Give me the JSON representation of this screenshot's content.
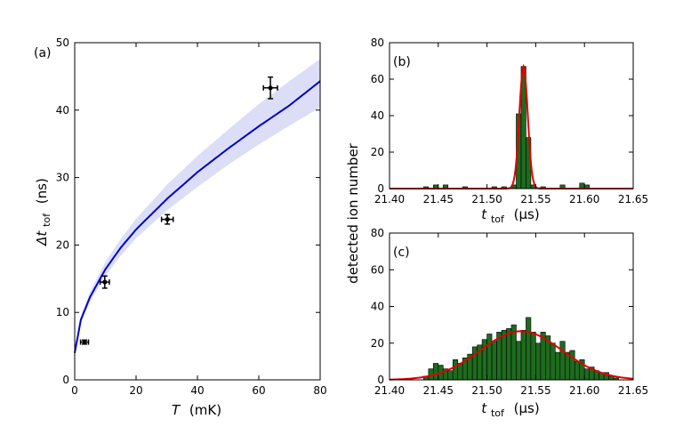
{
  "chart_data": [
    {
      "panel_label": "(a)",
      "type": "scatter",
      "xlabel": {
        "italic": "T",
        "unit": "(mK)"
      },
      "ylabel": {
        "italic": "Δt",
        "sub": "tof",
        "unit": "(ns)"
      },
      "xlim": [
        0,
        80
      ],
      "ylim": [
        0,
        50
      ],
      "x_ticks": [
        0,
        20,
        40,
        60,
        80
      ],
      "y_ticks": [
        0,
        10,
        20,
        30,
        40,
        50
      ],
      "x_tick_labels": [
        "0",
        "20",
        "40",
        "60",
        "80"
      ],
      "y_tick_labels": [
        "0",
        "10",
        "20",
        "30",
        "40",
        "50"
      ],
      "points": [
        {
          "x": 3.2,
          "y": 5.6,
          "xerr": 1.3,
          "yerr": 0.3
        },
        {
          "x": 9.8,
          "y": 14.5,
          "xerr": 1.5,
          "yerr": 0.9
        },
        {
          "x": 30.2,
          "y": 23.8,
          "xerr": 1.9,
          "yerr": 0.7
        },
        {
          "x": 63.8,
          "y": 43.3,
          "xerr": 2.3,
          "yerr": 1.6
        }
      ],
      "fit_curve": {
        "color": "#0000cc",
        "band_color": "#c5c7f0",
        "x": [
          0,
          2,
          5,
          10,
          15,
          20,
          30,
          40,
          50,
          60,
          70,
          80
        ],
        "y": [
          4.0,
          8.9,
          12.3,
          16.4,
          19.6,
          22.3,
          26.8,
          30.8,
          34.3,
          37.6,
          40.7,
          44.3
        ],
        "y_upper": [
          4.0,
          9.4,
          13.1,
          17.5,
          20.9,
          23.9,
          28.9,
          33.2,
          37.1,
          40.9,
          44.3,
          47.6
        ],
        "y_lower": [
          4.0,
          8.4,
          11.6,
          15.4,
          18.4,
          21.0,
          25.1,
          28.6,
          31.9,
          34.9,
          37.7,
          40.4
        ]
      }
    },
    {
      "panel_label": "(b)",
      "type": "bar",
      "xlabel": {
        "italic": "t",
        "sub": "tof",
        "unit": "(μs)"
      },
      "xlim": [
        21.4,
        21.65
      ],
      "ylim": [
        0,
        80
      ],
      "x_ticks": [
        21.4,
        21.45,
        21.5,
        21.55,
        21.6,
        21.65
      ],
      "x_tick_labels": [
        "21.40",
        "21.45",
        "21.50",
        "21.55",
        "21.60",
        "21.65"
      ],
      "y_ticks": [
        0,
        20,
        40,
        60,
        80
      ],
      "y_tick_labels": [
        "0",
        "20",
        "40",
        "60",
        "80"
      ],
      "bar_color": "#1e6b1e",
      "bin_width": 0.005,
      "bins": [
        {
          "x": 21.4375,
          "y": 1
        },
        {
          "x": 21.4475,
          "y": 2
        },
        {
          "x": 21.4575,
          "y": 2
        },
        {
          "x": 21.4775,
          "y": 1
        },
        {
          "x": 21.5075,
          "y": 1
        },
        {
          "x": 21.5175,
          "y": 1
        },
        {
          "x": 21.5275,
          "y": 2
        },
        {
          "x": 21.5325,
          "y": 41
        },
        {
          "x": 21.5375,
          "y": 67
        },
        {
          "x": 21.5425,
          "y": 28
        },
        {
          "x": 21.5475,
          "y": 2
        },
        {
          "x": 21.5575,
          "y": 1
        },
        {
          "x": 21.5775,
          "y": 2
        },
        {
          "x": 21.5975,
          "y": 3
        },
        {
          "x": 21.6025,
          "y": 2
        }
      ],
      "fit": {
        "type": "gaussian",
        "amplitude": 67,
        "center": 21.5375,
        "sigma": 0.0043,
        "color": "#e00000"
      }
    },
    {
      "panel_label": "(c)",
      "type": "bar",
      "xlabel": {
        "italic": "t",
        "sub": "tof",
        "unit": "(μs)"
      },
      "xlim": [
        21.4,
        21.65
      ],
      "ylim": [
        0,
        80
      ],
      "x_ticks": [
        21.4,
        21.45,
        21.5,
        21.55,
        21.6,
        21.65
      ],
      "x_tick_labels": [
        "21.40",
        "21.45",
        "21.50",
        "21.55",
        "21.60",
        "21.65"
      ],
      "y_ticks": [
        0,
        20,
        40,
        60,
        80
      ],
      "y_tick_labels": [
        "0",
        "20",
        "40",
        "60",
        "80"
      ],
      "bar_color": "#1e6b1e",
      "bin_width": 0.005,
      "bins": [
        {
          "x": 21.4375,
          "y": 2
        },
        {
          "x": 21.4425,
          "y": 6
        },
        {
          "x": 21.4475,
          "y": 9
        },
        {
          "x": 21.4525,
          "y": 8
        },
        {
          "x": 21.4575,
          "y": 6
        },
        {
          "x": 21.4625,
          "y": 5
        },
        {
          "x": 21.4675,
          "y": 11
        },
        {
          "x": 21.4725,
          "y": 9
        },
        {
          "x": 21.4775,
          "y": 12
        },
        {
          "x": 21.4825,
          "y": 14
        },
        {
          "x": 21.4875,
          "y": 18
        },
        {
          "x": 21.4925,
          "y": 19
        },
        {
          "x": 21.4975,
          "y": 22
        },
        {
          "x": 21.5025,
          "y": 25
        },
        {
          "x": 21.5075,
          "y": 21
        },
        {
          "x": 21.5125,
          "y": 26
        },
        {
          "x": 21.5175,
          "y": 27
        },
        {
          "x": 21.5225,
          "y": 28
        },
        {
          "x": 21.5275,
          "y": 30
        },
        {
          "x": 21.5325,
          "y": 21
        },
        {
          "x": 21.5375,
          "y": 27
        },
        {
          "x": 21.5425,
          "y": 34
        },
        {
          "x": 21.5475,
          "y": 26
        },
        {
          "x": 21.5525,
          "y": 20
        },
        {
          "x": 21.5575,
          "y": 26
        },
        {
          "x": 21.5625,
          "y": 24
        },
        {
          "x": 21.5675,
          "y": 20
        },
        {
          "x": 21.5725,
          "y": 15
        },
        {
          "x": 21.5775,
          "y": 21
        },
        {
          "x": 21.5825,
          "y": 15
        },
        {
          "x": 21.5875,
          "y": 16
        },
        {
          "x": 21.5925,
          "y": 10
        },
        {
          "x": 21.5975,
          "y": 11
        },
        {
          "x": 21.6025,
          "y": 6
        },
        {
          "x": 21.6075,
          "y": 7
        },
        {
          "x": 21.6125,
          "y": 5
        },
        {
          "x": 21.6175,
          "y": 4
        },
        {
          "x": 21.6225,
          "y": 4
        },
        {
          "x": 21.6275,
          "y": 2
        },
        {
          "x": 21.6325,
          "y": 1
        }
      ],
      "fit": {
        "type": "gaussian",
        "amplitude": 26.5,
        "center": 21.535,
        "sigma": 0.042,
        "color": "#e00000"
      }
    }
  ],
  "shared_ylabel": "detected ion number"
}
